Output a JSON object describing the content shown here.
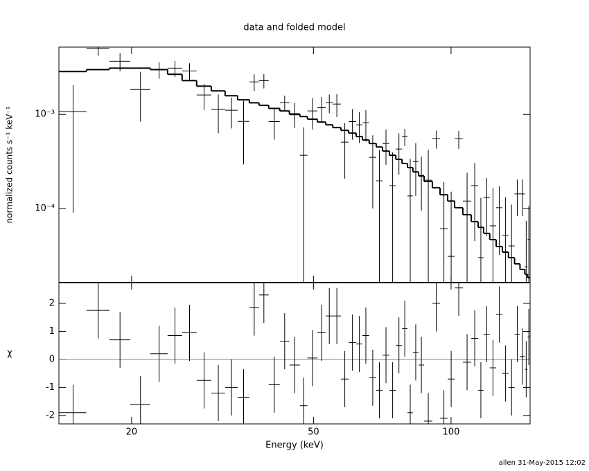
{
  "chart_data": [
    {
      "type": "errorbar",
      "title": "data and folded model",
      "ylabel": "normalized counts s⁻¹ keV⁻¹",
      "log_x": true,
      "log_y": true,
      "xlim": [
        13.87,
        148.9
      ],
      "ylim": [
        1.63e-05,
        0.0052
      ],
      "yticks": [
        {
          "value": 0.001,
          "label": "10⁻³"
        },
        {
          "value": 0.0001,
          "label": "10⁻⁴"
        }
      ],
      "color": "#000000",
      "model_color": "#000000",
      "x": [
        14.9,
        16.91,
        18.87,
        20.92,
        22.98,
        24.89,
        26.78,
        28.82,
        30.96,
        33.08,
        35.16,
        37.1,
        38.95,
        41.05,
        43.25,
        45.5,
        47.6,
        49.75,
        52.1,
        54.15,
        56.25,
        58.55,
        60.85,
        63.0,
        65.1,
        67.4,
        69.7,
        72.05,
        74.5,
        76.9,
        79.2,
        81.4,
        83.7,
        86.1,
        89.15,
        92.8,
        96.45,
        100.05,
        103.95,
        108.4,
        112.65,
        116.2,
        119.65,
        123.5,
        127.5,
        131.5,
        135.6,
        139.6,
        143.25,
        146.0,
        147.95
      ],
      "xerr": [
        1.03,
        0.97,
        0.99,
        1.06,
        1.0,
        0.91,
        0.98,
        1.06,
        1.08,
        1.04,
        1.04,
        0.9,
        0.95,
        1.15,
        1.05,
        1.2,
        0.9,
        1.25,
        1.1,
        0.95,
        1.15,
        1.15,
        1.15,
        1.0,
        1.1,
        1.2,
        1.1,
        1.25,
        1.2,
        1.2,
        1.1,
        1.1,
        1.2,
        1.2,
        1.85,
        1.8,
        1.85,
        1.75,
        2.15,
        2.3,
        1.95,
        1.6,
        1.85,
        2.0,
        2.0,
        2.0,
        2.1,
        1.9,
        1.75,
        1.0,
        0.95
      ],
      "values": [
        0.00107,
        0.005,
        0.00368,
        0.00184,
        0.003,
        0.00311,
        0.0029,
        0.00161,
        0.00113,
        0.00111,
        0.000844,
        0.00222,
        0.00229,
        0.00084,
        0.00133,
        0.00102,
        0.000368,
        0.00109,
        0.00118,
        0.00133,
        0.00129,
        0.000508,
        0.00084,
        0.000776,
        0.000816,
        0.00035,
        0.000197,
        0.000491,
        0.000175,
        0.000429,
        0.000582,
        0.000136,
        0.000316,
        0.000225,
        0.0002,
        0.000553,
        6.1e-05,
        3.1e-05,
        0.00055,
        0.00012,
        0.000175,
        3e-05,
        0.000131,
        6.55e-05,
        0.000102,
        5.2e-05,
        4e-05,
        0.000143,
        0.000143,
        2.4e-05,
        4.67e-05
      ],
      "errors": [
        0.00098,
        0.0008,
        0.0008,
        0.001,
        0.0006,
        0.0006,
        0.0006,
        0.0005,
        0.0005,
        0.0004,
        0.00055,
        0.00045,
        0.0004,
        0.0003,
        0.00025,
        0.0003,
        0.00036,
        0.0004,
        0.00035,
        0.0003,
        0.00035,
        0.0003,
        0.0003,
        0.00028,
        0.0003,
        0.00025,
        0.00022,
        0.0002,
        0.00022,
        0.0002,
        0.00012,
        0.0002,
        0.00018,
        0.00013,
        0.00022,
        0.00012,
        0.00013,
        0.00012,
        0.00012,
        0.00012,
        0.00013,
        0.0001,
        8e-05,
        0.0001,
        7e-05,
        8e-05,
        7e-05,
        6e-05,
        6e-05,
        5e-05,
        6e-05
      ],
      "model": [
        0.00286,
        0.003,
        0.00311,
        0.00311,
        0.003,
        0.00267,
        0.00229,
        0.002,
        0.00178,
        0.00158,
        0.00143,
        0.00133,
        0.00125,
        0.00116,
        0.00109,
        0.001,
        0.00095,
        0.00089,
        0.00083,
        0.000776,
        0.000725,
        0.000677,
        0.000633,
        0.000582,
        0.000535,
        0.000491,
        0.000451,
        0.000408,
        0.000368,
        0.000333,
        0.000301,
        0.000272,
        0.000245,
        0.000222,
        0.000194,
        0.000166,
        0.00014,
        0.00012,
        0.000102,
        8.6e-05,
        7.25e-05,
        6.3e-05,
        5.44e-05,
        4.67e-05,
        3.94e-05,
        3.44e-05,
        3e-05,
        2.58e-05,
        2.25e-05,
        2e-05,
        1.84e-05
      ]
    },
    {
      "type": "errorbar",
      "ylabel": "χ",
      "xlabel": "Energy (keV)",
      "log_x": true,
      "log_y": false,
      "xlim": [
        13.87,
        148.9
      ],
      "xticks": [
        20,
        50,
        100
      ],
      "ylim": [
        -2.3,
        2.74
      ],
      "yticks": [
        -2,
        -1,
        0,
        1,
        2
      ],
      "color": "#000000",
      "reference_line": 0,
      "reference_color": "#00dd00",
      "values": [
        -1.9,
        1.75,
        0.7,
        -1.6,
        0.2,
        0.85,
        0.95,
        -0.75,
        -1.2,
        -1.0,
        -1.35,
        1.85,
        2.3,
        -0.9,
        0.65,
        -0.2,
        -1.65,
        0.05,
        0.95,
        1.55,
        1.55,
        -0.7,
        0.6,
        0.55,
        0.85,
        -0.65,
        -1.1,
        0.15,
        -1.1,
        0.5,
        1.1,
        -1.9,
        0.25,
        -0.2,
        -2.2,
        2.0,
        -2.1,
        -0.7,
        2.55,
        -0.1,
        0.75,
        -1.1,
        0.9,
        -0.3,
        1.6,
        -0.5,
        -1.0,
        0.9,
        0.1,
        -0.35,
        0.8
      ],
      "errors": [
        1,
        1,
        1,
        1,
        1,
        1,
        1,
        1,
        1,
        1,
        1,
        1,
        1,
        1,
        1,
        1,
        1,
        1,
        1,
        1,
        1,
        1,
        1,
        1,
        1,
        1,
        1,
        1,
        1,
        1,
        1,
        1,
        1,
        1,
        1,
        1,
        1,
        1,
        1,
        1,
        1,
        1,
        1,
        1,
        1,
        1,
        1,
        1,
        1,
        1,
        1
      ]
    }
  ],
  "footer": "allen 31-May-2015 12:02"
}
